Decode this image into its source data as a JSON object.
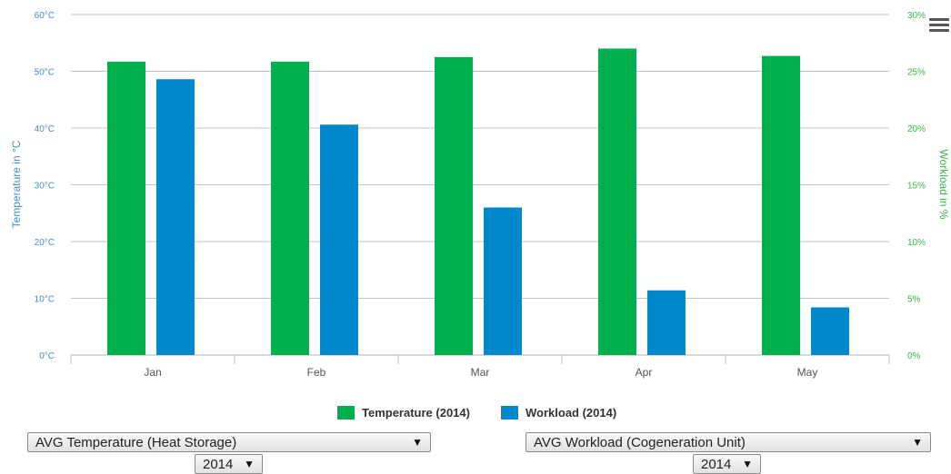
{
  "chart_data": {
    "type": "bar",
    "categories": [
      "Jan",
      "Feb",
      "Mar",
      "Apr",
      "May"
    ],
    "series": [
      {
        "name": "Temperature (2014)",
        "axis": "left",
        "color": "#00b04f",
        "values": [
          51.7,
          51.7,
          52.5,
          54.0,
          52.7
        ]
      },
      {
        "name": "Workload (2014)",
        "axis": "right",
        "color": "#0088cc",
        "values": [
          24.3,
          20.3,
          13.0,
          5.7,
          4.2
        ]
      }
    ],
    "y_left": {
      "label": "Temperature in °C",
      "ylim": [
        0,
        60
      ],
      "ticks": [
        "0°C",
        "10°C",
        "20°C",
        "30°C",
        "40°C",
        "50°C",
        "60°C"
      ],
      "color": "#4a8ec8"
    },
    "y_right": {
      "label": "Workload in %",
      "ylim": [
        0,
        30
      ],
      "ticks": [
        "0%",
        "5%",
        "10%",
        "15%",
        "20%",
        "25%",
        "30%"
      ],
      "color": "#3cb54a"
    },
    "grid": true,
    "legend": "bottom-center"
  },
  "legend": {
    "temperature": "Temperature (2014)",
    "workload": "Workload (2014)"
  },
  "controls": {
    "left_metric": "AVG Temperature (Heat Storage)",
    "left_year": "2014",
    "right_metric": "AVG Workload (Cogeneration Unit)",
    "right_year": "2014",
    "dropdown_arrow": "▼"
  },
  "icons": {
    "menu": "hamburger-menu-icon"
  }
}
